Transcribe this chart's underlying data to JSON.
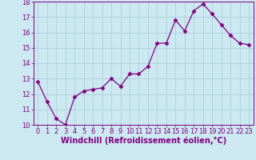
{
  "x": [
    0,
    1,
    2,
    3,
    4,
    5,
    6,
    7,
    8,
    9,
    10,
    11,
    12,
    13,
    14,
    15,
    16,
    17,
    18,
    19,
    20,
    21,
    22,
    23
  ],
  "y": [
    12.8,
    11.5,
    10.4,
    10.0,
    11.8,
    12.2,
    12.3,
    12.4,
    13.0,
    12.5,
    13.3,
    13.3,
    13.8,
    15.3,
    15.3,
    16.8,
    16.1,
    17.4,
    17.85,
    17.2,
    16.5,
    15.8,
    15.3,
    15.2
  ],
  "line_color": "#800080",
  "marker": "D",
  "marker_size": 2.5,
  "background_color": "#cce8f0",
  "grid_color": "#aaccdd",
  "xlabel": "Windchill (Refroidissement éolien,°C)",
  "xlabel_color": "#800080",
  "ylim": [
    10,
    18
  ],
  "yticks": [
    10,
    11,
    12,
    13,
    14,
    15,
    16,
    17,
    18
  ],
  "xticks": [
    0,
    1,
    2,
    3,
    4,
    5,
    6,
    7,
    8,
    9,
    10,
    11,
    12,
    13,
    14,
    15,
    16,
    17,
    18,
    19,
    20,
    21,
    22,
    23
  ],
  "tick_color": "#800080",
  "tick_fontsize": 6.0,
  "xlabel_fontsize": 7.0
}
